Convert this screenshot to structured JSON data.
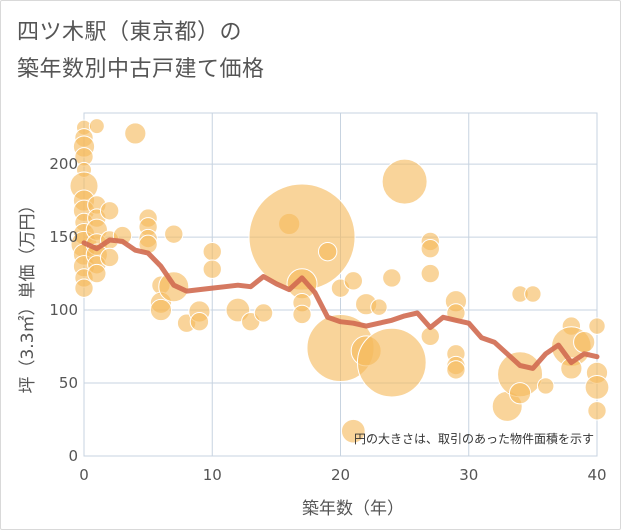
{
  "title_line1": "四ツ木駅（東京都）の",
  "title_line2": "築年数別中古戸建て価格",
  "chart_data": {
    "type": "scatter",
    "xlabel": "築年数（年）",
    "ylabel": "坪（3.3㎡）単価（万円）",
    "xlim": [
      0,
      40
    ],
    "ylim": [
      0,
      235
    ],
    "xticks": [
      0,
      10,
      20,
      30,
      40
    ],
    "yticks": [
      0,
      50,
      100,
      150,
      200
    ],
    "grid": true,
    "annotation": "円の大きさは、取引のあった物件面積を示す",
    "colors": {
      "bubble": "#f5b95c",
      "line": "#d06a50",
      "grid": "#c7d3e0",
      "text": "#555555"
    },
    "bubbles": [
      {
        "x": 0,
        "y": 225,
        "s": 1
      },
      {
        "x": 0,
        "y": 218,
        "s": 1.5
      },
      {
        "x": 0,
        "y": 212,
        "s": 2
      },
      {
        "x": 0,
        "y": 205,
        "s": 1.5
      },
      {
        "x": 0,
        "y": 196,
        "s": 1
      },
      {
        "x": 0,
        "y": 185,
        "s": 3.5
      },
      {
        "x": 0,
        "y": 175,
        "s": 2
      },
      {
        "x": 0,
        "y": 168,
        "s": 2
      },
      {
        "x": 0,
        "y": 160,
        "s": 1.5
      },
      {
        "x": 0,
        "y": 152,
        "s": 2
      },
      {
        "x": 0,
        "y": 145,
        "s": 3
      },
      {
        "x": 0,
        "y": 138,
        "s": 2
      },
      {
        "x": 0,
        "y": 130,
        "s": 2
      },
      {
        "x": 0,
        "y": 122,
        "s": 1.5
      },
      {
        "x": 0,
        "y": 115,
        "s": 1.5
      },
      {
        "x": 1,
        "y": 226,
        "s": 1
      },
      {
        "x": 1,
        "y": 172,
        "s": 1.5
      },
      {
        "x": 1,
        "y": 163,
        "s": 1.5
      },
      {
        "x": 1,
        "y": 155,
        "s": 2
      },
      {
        "x": 1,
        "y": 145,
        "s": 2
      },
      {
        "x": 1,
        "y": 138,
        "s": 2
      },
      {
        "x": 1,
        "y": 131,
        "s": 1.5
      },
      {
        "x": 1,
        "y": 125,
        "s": 1.5
      },
      {
        "x": 2,
        "y": 168,
        "s": 1.5
      },
      {
        "x": 2,
        "y": 148,
        "s": 1.5
      },
      {
        "x": 2,
        "y": 136,
        "s": 1.5
      },
      {
        "x": 3,
        "y": 151,
        "s": 1.5
      },
      {
        "x": 4,
        "y": 221,
        "s": 2
      },
      {
        "x": 5,
        "y": 163,
        "s": 1.5
      },
      {
        "x": 5,
        "y": 157,
        "s": 1.5
      },
      {
        "x": 5,
        "y": 149,
        "s": 1.5
      },
      {
        "x": 5,
        "y": 145,
        "s": 1.5
      },
      {
        "x": 6,
        "y": 117,
        "s": 1.5
      },
      {
        "x": 6,
        "y": 105,
        "s": 2
      },
      {
        "x": 6,
        "y": 100,
        "s": 2
      },
      {
        "x": 7,
        "y": 152,
        "s": 1.5
      },
      {
        "x": 7,
        "y": 116,
        "s": 4
      },
      {
        "x": 8,
        "y": 91,
        "s": 1.5
      },
      {
        "x": 9,
        "y": 99,
        "s": 2
      },
      {
        "x": 9,
        "y": 92,
        "s": 1.5
      },
      {
        "x": 10,
        "y": 140,
        "s": 1.5
      },
      {
        "x": 10,
        "y": 128,
        "s": 1.5
      },
      {
        "x": 12,
        "y": 100,
        "s": 2.5
      },
      {
        "x": 13,
        "y": 92,
        "s": 1.5
      },
      {
        "x": 14,
        "y": 98,
        "s": 1.5
      },
      {
        "x": 16,
        "y": 159,
        "s": 2
      },
      {
        "x": 17,
        "y": 150,
        "s": 50
      },
      {
        "x": 17,
        "y": 118,
        "s": 4
      },
      {
        "x": 17,
        "y": 105,
        "s": 1.5
      },
      {
        "x": 17,
        "y": 97,
        "s": 1.5
      },
      {
        "x": 19,
        "y": 140,
        "s": 1.5
      },
      {
        "x": 20,
        "y": 115,
        "s": 1.5
      },
      {
        "x": 20,
        "y": 74,
        "s": 20
      },
      {
        "x": 21,
        "y": 120,
        "s": 1.5
      },
      {
        "x": 21,
        "y": 17,
        "s": 2.5
      },
      {
        "x": 22,
        "y": 72,
        "s": 4
      },
      {
        "x": 22,
        "y": 104,
        "s": 2
      },
      {
        "x": 23,
        "y": 102,
        "s": 1.2
      },
      {
        "x": 24,
        "y": 122,
        "s": 1.5
      },
      {
        "x": 24,
        "y": 64,
        "s": 21
      },
      {
        "x": 25,
        "y": 188,
        "s": 9
      },
      {
        "x": 27,
        "y": 147,
        "s": 1.5
      },
      {
        "x": 27,
        "y": 142,
        "s": 1.5
      },
      {
        "x": 27,
        "y": 125,
        "s": 1.5
      },
      {
        "x": 27,
        "y": 82,
        "s": 1.5
      },
      {
        "x": 29,
        "y": 106,
        "s": 2
      },
      {
        "x": 29,
        "y": 98,
        "s": 1.5
      },
      {
        "x": 29,
        "y": 70,
        "s": 1.5
      },
      {
        "x": 29,
        "y": 62,
        "s": 1.5
      },
      {
        "x": 29,
        "y": 59,
        "s": 1.5
      },
      {
        "x": 33,
        "y": 34,
        "s": 4
      },
      {
        "x": 34,
        "y": 111,
        "s": 1.2
      },
      {
        "x": 34,
        "y": 56,
        "s": 9
      },
      {
        "x": 34,
        "y": 43,
        "s": 2
      },
      {
        "x": 35,
        "y": 111,
        "s": 1.2
      },
      {
        "x": 36,
        "y": 48,
        "s": 1.2
      },
      {
        "x": 38,
        "y": 89,
        "s": 1.5
      },
      {
        "x": 38,
        "y": 75,
        "s": 7
      },
      {
        "x": 38,
        "y": 60,
        "s": 2
      },
      {
        "x": 39,
        "y": 78,
        "s": 2
      },
      {
        "x": 40,
        "y": 89,
        "s": 1.2
      },
      {
        "x": 40,
        "y": 57,
        "s": 2
      },
      {
        "x": 40,
        "y": 47,
        "s": 2.5
      },
      {
        "x": 40,
        "y": 31,
        "s": 1.5
      }
    ],
    "trend": {
      "x": [
        0,
        1,
        2,
        3,
        4,
        5,
        6,
        7,
        8,
        9,
        10,
        11,
        12,
        13,
        14,
        15,
        16,
        17,
        18,
        19,
        20,
        21,
        22,
        23,
        24,
        25,
        26,
        27,
        28,
        29,
        30,
        31,
        32,
        33,
        34,
        35,
        36,
        37,
        38,
        39,
        40
      ],
      "y": [
        146,
        142,
        148,
        147,
        141,
        139,
        130,
        117,
        113,
        114,
        115,
        116,
        117,
        116,
        123,
        118,
        114,
        122,
        112,
        95,
        92,
        91,
        89,
        91,
        93,
        96,
        98,
        88,
        95,
        93,
        91,
        81,
        78,
        70,
        62,
        60,
        70,
        76,
        64,
        70,
        68
      ]
    }
  }
}
